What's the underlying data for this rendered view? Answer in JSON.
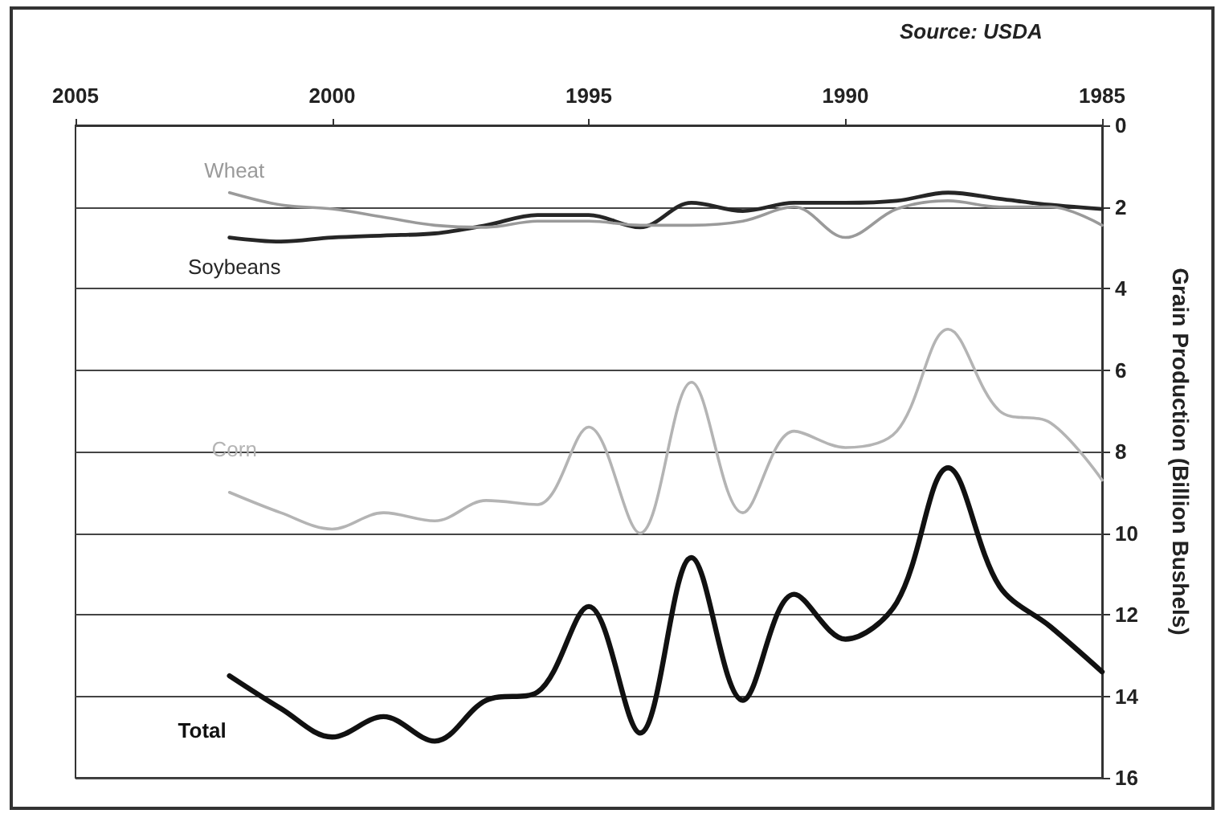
{
  "chart_data": {
    "type": "line",
    "ylabel": "Grain Production (Billion Bushels)",
    "annotations": [
      "Source: USDA"
    ],
    "x": [
      1985,
      1986,
      1987,
      1988,
      1989,
      1990,
      1991,
      1992,
      1993,
      1994,
      1995,
      1996,
      1997,
      1998,
      1999,
      2000,
      2001,
      2002
    ],
    "series": [
      {
        "name": "Total",
        "color": "#111111",
        "values": [
          13.4,
          12.3,
          11.3,
          8.4,
          11.7,
          12.6,
          11.5,
          14.1,
          10.6,
          14.9,
          11.8,
          13.9,
          14.1,
          15.1,
          14.5,
          15.0,
          14.3,
          13.5
        ]
      },
      {
        "name": "Corn",
        "color": "#b4b4b4",
        "values": [
          8.7,
          7.3,
          7.0,
          5.0,
          7.5,
          7.9,
          7.5,
          9.5,
          6.3,
          10.0,
          7.4,
          9.3,
          9.2,
          9.7,
          9.5,
          9.9,
          9.5,
          9.0
        ]
      },
      {
        "name": "Soybeans",
        "color": "#262626",
        "values": [
          2.05,
          1.95,
          1.8,
          1.65,
          1.85,
          1.9,
          1.9,
          2.1,
          1.9,
          2.5,
          2.2,
          2.2,
          2.45,
          2.65,
          2.7,
          2.75,
          2.85,
          2.75
        ]
      },
      {
        "name": "Wheat",
        "color": "#9a9a9a",
        "values": [
          2.45,
          2.0,
          2.0,
          1.85,
          2.05,
          2.75,
          2.0,
          2.35,
          2.45,
          2.45,
          2.35,
          2.35,
          2.5,
          2.45,
          2.25,
          2.05,
          1.95,
          1.65
        ]
      }
    ],
    "xlim": [
      2005,
      1985
    ],
    "xticks": [
      1985,
      1990,
      1995,
      2000,
      2005
    ],
    "ylim": [
      16,
      0
    ],
    "yticks": [
      0,
      2,
      4,
      6,
      8,
      10,
      12,
      14,
      16
    ],
    "grid": "y",
    "legend": false,
    "marker": "none",
    "line_style": "solid"
  }
}
